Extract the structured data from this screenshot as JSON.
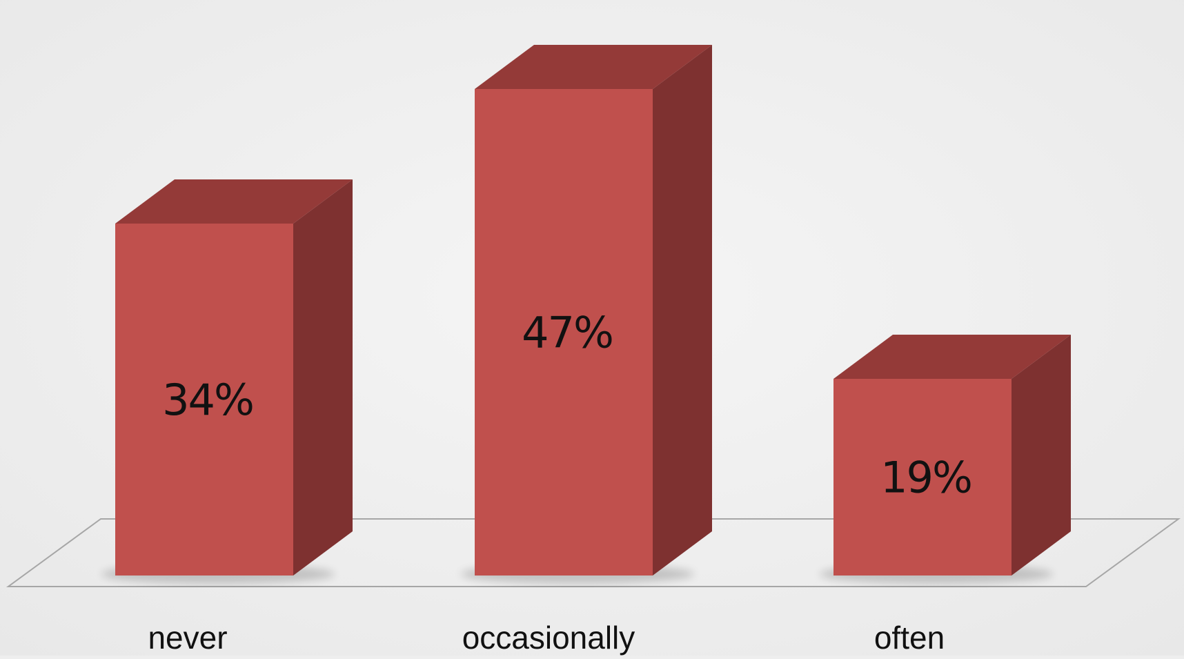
{
  "chart_data": {
    "type": "bar",
    "categories": [
      "never",
      "occasionally",
      "often"
    ],
    "values": [
      34,
      47,
      19
    ],
    "value_labels": [
      "34%",
      "47%",
      "19%"
    ],
    "title": "",
    "xlabel": "",
    "ylabel": "",
    "ylim": [
      0,
      50
    ],
    "grid": false,
    "legend": "none",
    "bar_front_color": "#c0504d",
    "bar_top_color": "#943a38",
    "bar_side_color": "#7e3130",
    "floor_line_color": "#a6a6a6",
    "background_color": "#eeeeee"
  }
}
